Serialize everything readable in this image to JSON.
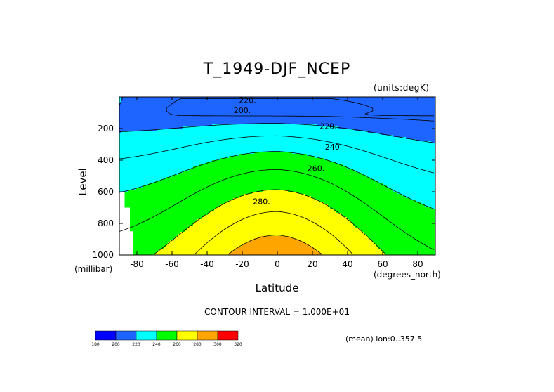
{
  "chart_data": {
    "type": "contour",
    "title": "T_1949-DJF_NCEP",
    "units_note": "(units:degK)",
    "xlabel": "Latitude",
    "x_unit": "(degrees_north)",
    "ylabel": "Level",
    "y_unit": "(millibar)",
    "xlim": [
      -90,
      90
    ],
    "ylim": [
      1000,
      0
    ],
    "x_ticks": [
      -80,
      -60,
      -40,
      -20,
      0,
      20,
      40,
      60,
      80
    ],
    "y_ticks": [
      200,
      400,
      600,
      800,
      1000
    ],
    "contour_interval_text": "CONTOUR INTERVAL = 1.000E+01",
    "mean_note": "(mean) lon:0..357.5",
    "contour_labels": [
      {
        "text": "220.",
        "lat": -17,
        "level": 20
      },
      {
        "text": "200.",
        "lat": -20,
        "level": 85
      },
      {
        "text": "220.",
        "lat": 29,
        "level": 185
      },
      {
        "text": "240.",
        "lat": 32,
        "level": 315
      },
      {
        "text": "260.",
        "lat": 22,
        "level": 450
      },
      {
        "text": "280.",
        "lat": -9,
        "level": 660
      }
    ],
    "colorbar": {
      "levels": [
        180,
        200,
        220,
        240,
        260,
        280,
        300,
        320
      ],
      "colors": [
        "#0000ff",
        "#1e64ff",
        "#00ffff",
        "#00ff00",
        "#ffff00",
        "#ffa500",
        "#ff0000"
      ]
    },
    "bands": [
      {
        "low": 180,
        "high": 200,
        "color": "#0000ff",
        "region": "core",
        "lat_range": [
          -33,
          27
        ],
        "level_range": [
          50,
          115
        ]
      },
      {
        "low": 200,
        "high": 220,
        "color": "#1e64ff",
        "region": "upper",
        "level_range": [
          0,
          300
        ]
      },
      {
        "low": 220,
        "high": 240,
        "color": "#00ffff"
      },
      {
        "low": 240,
        "high": 260,
        "color": "#00ff00"
      },
      {
        "low": 260,
        "high": 280,
        "color": "#ffff00"
      },
      {
        "low": 280,
        "high": 290,
        "color": "#ffa500",
        "lat_range": [
          -51,
          45
        ],
        "level_range": [
          680,
          1000
        ]
      }
    ]
  }
}
